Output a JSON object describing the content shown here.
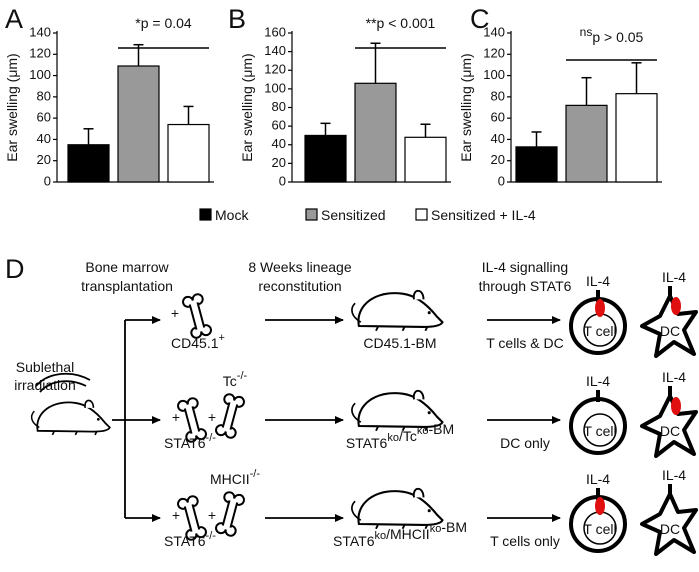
{
  "chart_data": [
    {
      "type": "bar",
      "panel": "A",
      "ylabel": "Ear swelling (μm)",
      "annotation": {
        "text": "*p = 0.04"
      },
      "categories": [
        null
      ],
      "ylim": [
        0,
        140
      ],
      "yticks": [
        0,
        20,
        40,
        60,
        80,
        100,
        120,
        140
      ],
      "series": [
        {
          "name": "Mock",
          "color": "#000000",
          "values": [
            35
          ],
          "errors": [
            15
          ]
        },
        {
          "name": "Sensitized",
          "color": "#999999",
          "values": [
            109
          ],
          "errors": [
            20
          ]
        },
        {
          "name": "Sensitized + IL-4",
          "color": "#ffffff",
          "values": [
            54
          ],
          "errors": [
            17
          ]
        }
      ]
    },
    {
      "type": "bar",
      "panel": "B",
      "ylabel": "Ear swelling (μm)",
      "annotation": {
        "text": "**p < 0.001"
      },
      "categories": [
        null
      ],
      "ylim": [
        0,
        160
      ],
      "yticks": [
        0,
        20,
        40,
        60,
        80,
        100,
        120,
        140,
        160
      ],
      "series": [
        {
          "name": "Mock",
          "color": "#000000",
          "values": [
            50
          ],
          "errors": [
            13
          ]
        },
        {
          "name": "Sensitized",
          "color": "#999999",
          "values": [
            106
          ],
          "errors": [
            43
          ]
        },
        {
          "name": "Sensitized + IL-4",
          "color": "#ffffff",
          "values": [
            48
          ],
          "errors": [
            14
          ]
        }
      ]
    },
    {
      "type": "bar",
      "panel": "C",
      "ylabel": "Ear swelling (μm)",
      "annotation": {
        "sup": "ns",
        "text": "p > 0.05"
      },
      "categories": [
        null
      ],
      "ylim": [
        0,
        140
      ],
      "yticks": [
        0,
        20,
        40,
        60,
        80,
        100,
        120,
        140
      ],
      "series": [
        {
          "name": "Mock",
          "color": "#000000",
          "values": [
            33
          ],
          "errors": [
            14
          ]
        },
        {
          "name": "Sensitized",
          "color": "#999999",
          "values": [
            72
          ],
          "errors": [
            26
          ]
        },
        {
          "name": "Sensitized + IL-4",
          "color": "#ffffff",
          "values": [
            83
          ],
          "errors": [
            29
          ]
        }
      ]
    }
  ],
  "diagram": {
    "label": "D",
    "headers": [
      [
        "Bone marrow",
        "transplantation"
      ],
      [
        "8 Weeks lineage",
        "reconstitution"
      ],
      [
        "IL-4 signalling",
        "through STAT6"
      ]
    ],
    "start": [
      "Sublethal",
      "irradiation"
    ],
    "rows": [
      {
        "plus": [
          "+"
        ],
        "donors": [
          {
            "text": "CD45.1",
            "sup": "+"
          }
        ],
        "recipient": [
          {
            "text": "CD45.1-BM"
          }
        ],
        "outcome": "T cells & DC",
        "cells": {
          "t_cytokine": "IL-4",
          "t": "T cell",
          "dc_cytokine": "IL-4",
          "dc": "DC"
        },
        "signal": [
          true,
          true
        ]
      },
      {
        "plus": [
          "+",
          "+"
        ],
        "donors": [
          {
            "text": "STAT6",
            "sup": "-/-"
          },
          {
            "text": "Tc",
            "sup": "-/-"
          }
        ],
        "recipient": [
          {
            "text": "STAT6",
            "sup": "ko"
          },
          {
            "text": "/Tc",
            "sup": "ko"
          },
          {
            "text": "-BM"
          }
        ],
        "outcome": "DC only",
        "cells": {
          "t_cytokine": "IL-4",
          "t": "T cell",
          "dc_cytokine": "IL-4",
          "dc": "DC"
        },
        "signal": [
          false,
          true
        ]
      },
      {
        "plus": [
          "+",
          "+"
        ],
        "donors": [
          {
            "text": "STAT6",
            "sup": "-/-"
          },
          {
            "text": "MHCII",
            "sup": "-/-"
          }
        ],
        "recipient": [
          {
            "text": "STAT6",
            "sup": "ko"
          },
          {
            "text": "/MHCII",
            "sup": "ko"
          },
          {
            "text": "-BM"
          }
        ],
        "outcome": "T cells only",
        "cells": {
          "t_cytokine": "IL-4",
          "t": "T cell",
          "dc_cytokine": "IL-4",
          "dc": "DC"
        },
        "signal": [
          true,
          false
        ]
      }
    ]
  }
}
